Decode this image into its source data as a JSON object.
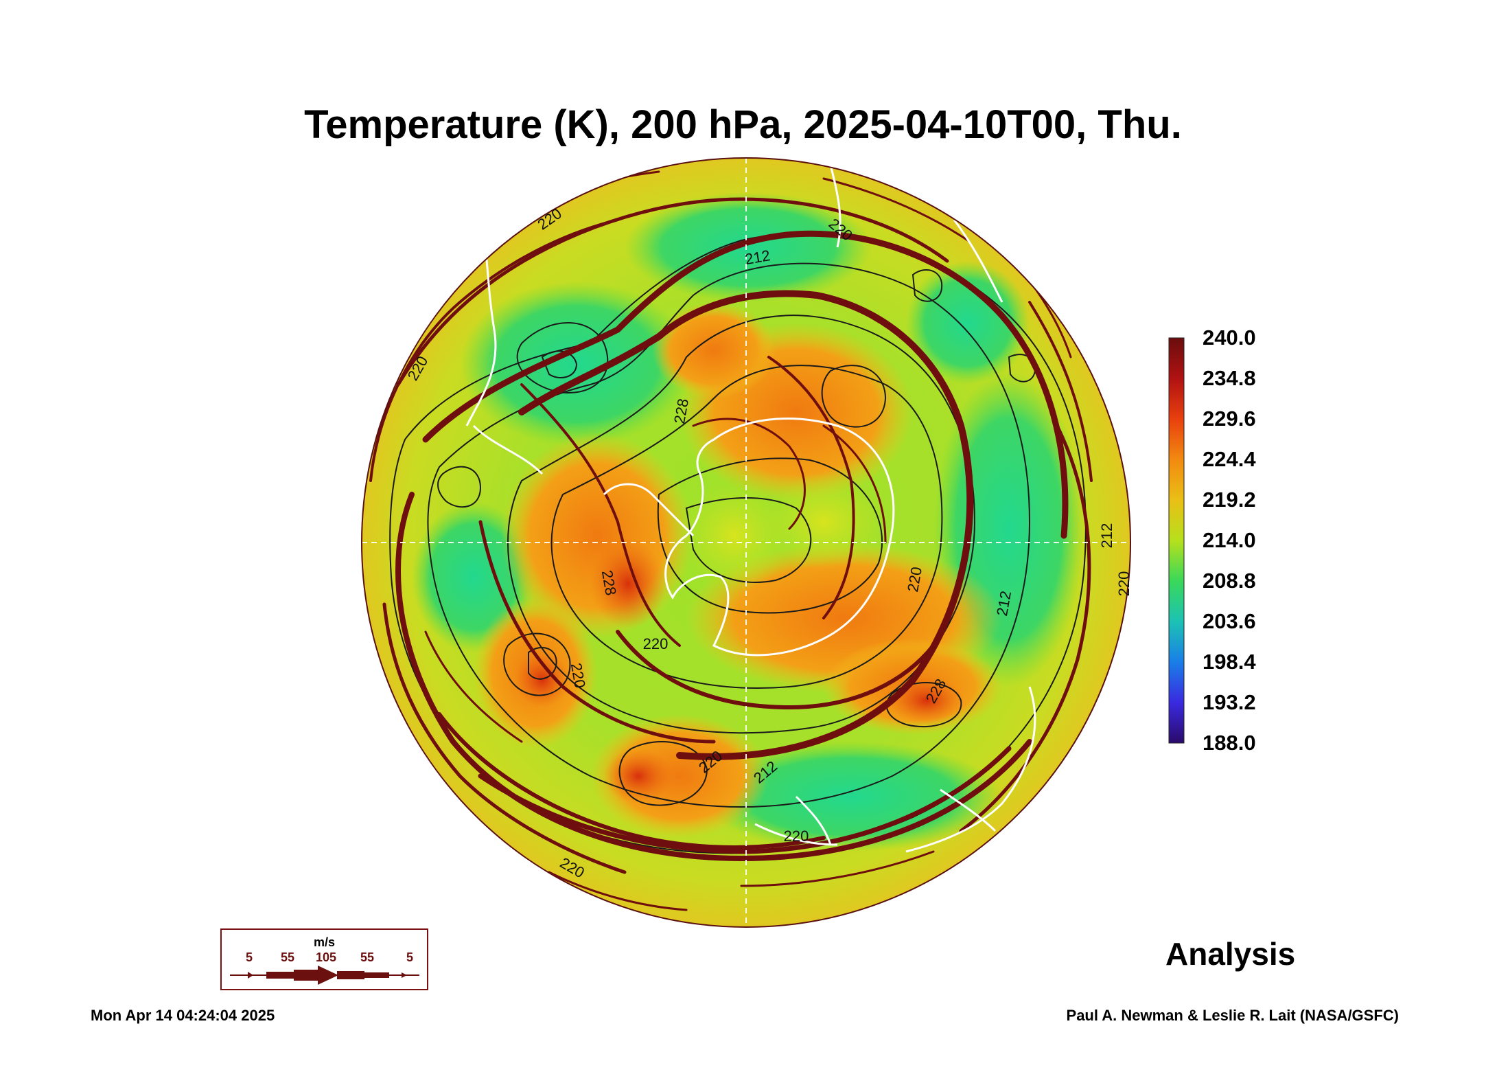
{
  "title": "Temperature (K), 200 hPa, 2025-04-10T00, Thu.",
  "colorbar": {
    "labels": [
      "240.0",
      "234.8",
      "229.6",
      "224.4",
      "219.2",
      "214.0",
      "208.8",
      "203.6",
      "198.4",
      "193.2",
      "188.0"
    ],
    "colors": [
      "#6a0d0d",
      "#b01212",
      "#e8400e",
      "#f28a10",
      "#eabf16",
      "#b6e01c",
      "#3ad85a",
      "#1cc2b4",
      "#1a7ee8",
      "#3a2ae0",
      "#2a0a6a"
    ]
  },
  "contour_labels": [
    "220",
    "212",
    "212",
    "228",
    "228",
    "220",
    "220",
    "220",
    "228",
    "220",
    "212",
    "212",
    "220",
    "220",
    "220",
    "220",
    "220"
  ],
  "wind_legend": {
    "unit": "m/s",
    "values": [
      "5",
      "55",
      "105",
      "55",
      "5"
    ]
  },
  "analysis_label": "Analysis",
  "footer_left": "Mon Apr 14 04:24:04 2025",
  "footer_right": "Paul A. Newman & Leslie R. Lait (NASA/GSFC)"
}
